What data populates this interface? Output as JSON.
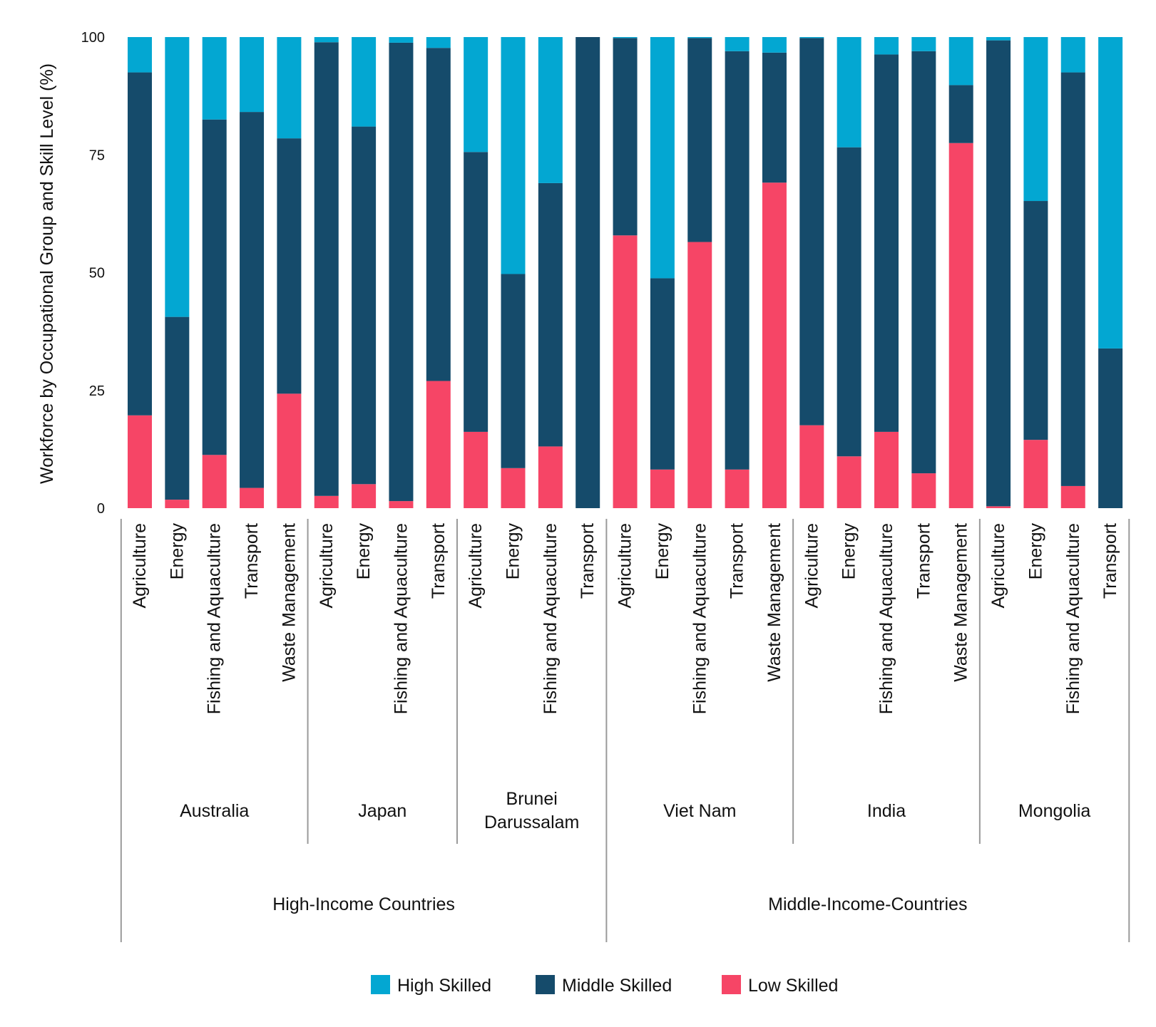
{
  "chart_data": {
    "type": "bar",
    "stacked": true,
    "ylabel": "Workforce by Occupational Group and Skill Level (%)",
    "ylim": [
      0,
      100
    ],
    "yticks": [
      0,
      25,
      50,
      75,
      100
    ],
    "grid": false,
    "legend_position": "bottom",
    "categories": [
      "Agriculture",
      "Energy",
      "Fishing and Aquaculture",
      "Transport",
      "Waste Management",
      "Agriculture",
      "Energy",
      "Fishing and Aquaculture",
      "Transport",
      "Agriculture",
      "Energy",
      "Fishing and Aquaculture",
      "Transport",
      "Agriculture",
      "Energy",
      "Fishing and Aquaculture",
      "Transport",
      "Waste Management",
      "Agriculture",
      "Energy",
      "Fishing and Aquaculture",
      "Transport",
      "Waste Management",
      "Agriculture",
      "Energy",
      "Fishing and Aquaculture",
      "Transport"
    ],
    "countries": [
      {
        "lines": [
          "Australia"
        ],
        "count": 5
      },
      {
        "lines": [
          "Japan"
        ],
        "count": 4
      },
      {
        "lines": [
          "Brunei",
          "Darussalam"
        ],
        "count": 4
      },
      {
        "lines": [
          "Viet Nam"
        ],
        "count": 5
      },
      {
        "lines": [
          "India"
        ],
        "count": 5
      },
      {
        "lines": [
          "Mongolia"
        ],
        "count": 4
      }
    ],
    "income_groups": [
      {
        "label": "High-Income Countries",
        "count": 13
      },
      {
        "label": "Middle-Income-Countries",
        "count": 14
      }
    ],
    "series": [
      {
        "name": "Low Skilled",
        "color": "#f64566",
        "values": [
          19.7,
          1.8,
          11.3,
          4.3,
          24.3,
          2.6,
          5.1,
          1.5,
          27.0,
          16.2,
          8.5,
          13.1,
          0.0,
          57.9,
          8.2,
          56.5,
          8.2,
          69.1,
          17.6,
          11.0,
          16.2,
          7.4,
          77.5,
          0.4,
          14.5,
          4.7,
          0.0
        ]
      },
      {
        "name": "Middle Skilled",
        "color": "#154b6b",
        "values": [
          72.8,
          38.8,
          71.2,
          79.8,
          54.2,
          96.3,
          75.9,
          97.3,
          70.7,
          59.4,
          41.2,
          55.9,
          100.0,
          41.9,
          40.6,
          43.3,
          88.8,
          27.6,
          82.2,
          65.6,
          80.1,
          89.6,
          12.3,
          98.9,
          50.7,
          87.8,
          33.9
        ]
      },
      {
        "name": "High Skilled",
        "color": "#03a7d2",
        "values": [
          7.5,
          59.4,
          17.5,
          15.9,
          21.5,
          1.1,
          19.0,
          1.2,
          2.3,
          24.4,
          50.3,
          31.0,
          0.0,
          0.2,
          51.2,
          0.2,
          3.0,
          3.3,
          0.2,
          23.4,
          3.7,
          3.0,
          10.2,
          0.7,
          34.8,
          7.5,
          66.1
        ]
      }
    ],
    "legend": [
      {
        "label": "High Skilled",
        "color": "#03a7d2"
      },
      {
        "label": "Middle Skilled",
        "color": "#154b6b"
      },
      {
        "label": "Low Skilled",
        "color": "#f64566"
      }
    ]
  }
}
